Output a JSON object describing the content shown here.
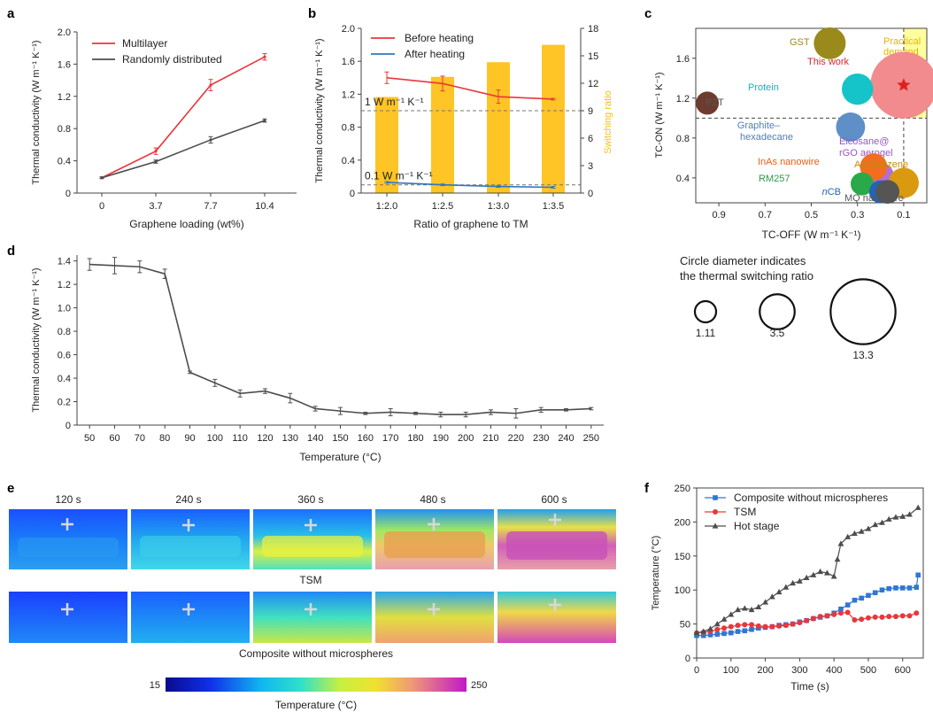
{
  "panel_labels": {
    "a": "a",
    "b": "b",
    "c": "c",
    "d": "d",
    "e": "e",
    "f": "f"
  },
  "chart_data": [
    {
      "id": "a",
      "type": "line",
      "xlabel": "Graphene loading (wt%)",
      "ylabel": "Thermal conductivity (W m⁻¹ K⁻¹)",
      "categories": [
        "0",
        "3.7",
        "7.7",
        "10.4"
      ],
      "ylim": [
        0,
        2.0
      ],
      "yticks": [
        "0",
        "0.4",
        "0.8",
        "1.2",
        "1.6",
        "2.0"
      ],
      "yticks_values": [
        0,
        0.4,
        0.8,
        1.2,
        1.6,
        2.0
      ],
      "legend_position": "top-left",
      "series": [
        {
          "name": "Multilayer",
          "color": "#e8373c",
          "values": [
            0.19,
            0.52,
            1.34,
            1.69
          ],
          "errors": [
            0.01,
            0.04,
            0.07,
            0.04
          ]
        },
        {
          "name": "Randomly distributed",
          "color": "#4d4d4d",
          "values": [
            0.19,
            0.39,
            0.66,
            0.9
          ],
          "errors": [
            0.01,
            0.02,
            0.04,
            0.02
          ]
        }
      ]
    },
    {
      "id": "b",
      "type": "bar",
      "xlabel": "Ratio of graphene to TM",
      "ylabel": "Thermal conductivity (W m⁻¹ K⁻¹)",
      "y2label": "Switching ratio",
      "categories": [
        "1:2.0",
        "1:2.5",
        "1:3.0",
        "1:3.5"
      ],
      "ylim": [
        0,
        2.0
      ],
      "yticks": [
        "0",
        "0.4",
        "0.8",
        "1.2",
        "1.6",
        "2.0"
      ],
      "yticks_values": [
        0,
        0.4,
        0.8,
        1.2,
        1.6,
        2.0
      ],
      "y2lim": [
        0,
        18
      ],
      "y2ticks": [
        "0",
        "3",
        "6",
        "9",
        "12",
        "15",
        "18"
      ],
      "y2ticks_values": [
        0,
        3,
        6,
        9,
        12,
        15,
        18
      ],
      "bar_color": "#ffc425",
      "bars_switching_ratio": [
        10.5,
        12.7,
        14.3,
        16.2
      ],
      "reference_lines": [
        {
          "value": 1.0,
          "label": "1 W m⁻¹ K⁻¹"
        },
        {
          "value": 0.1,
          "label": "0.1 W m⁻¹ K⁻¹"
        }
      ],
      "legend_position": "top",
      "series": [
        {
          "name": "Before heating",
          "color": "#e8373c",
          "values": [
            1.4,
            1.33,
            1.17,
            1.14
          ],
          "errors": [
            0.07,
            0.09,
            0.08,
            0.01
          ]
        },
        {
          "name": "After heating",
          "color": "#2f77bf",
          "values": [
            0.13,
            0.1,
            0.08,
            0.07
          ],
          "errors": [
            0.01,
            0.01,
            0.01,
            0.01
          ]
        }
      ]
    },
    {
      "id": "c",
      "type": "scatter",
      "xlabel": "TC-OFF (W m⁻¹ K⁻¹)",
      "ylabel": "TC-ON (W m⁻¹ K⁻¹)",
      "x_reversed": true,
      "xticks": [
        "0.9",
        "0.7",
        "0.5",
        "0.3",
        "0.1"
      ],
      "xticks_values": [
        0.9,
        0.7,
        0.5,
        0.3,
        0.1
      ],
      "xlim": [
        1.0,
        0.0
      ],
      "ylim": [
        0.15,
        1.9
      ],
      "yticks": [
        "0.4",
        "0.8",
        "1.2",
        "1.6"
      ],
      "yticks_values": [
        0.4,
        0.8,
        1.2,
        1.6
      ],
      "practical_demand_label": "Practical demand",
      "points": [
        {
          "name": "This work",
          "x": 0.1,
          "y": 1.33,
          "ratio": 13.3,
          "color": "#f28b8e",
          "label_color": "#d42a2a",
          "star": true
        },
        {
          "name": "GST",
          "x": 0.42,
          "y": 1.75,
          "ratio": 2.5,
          "color": "#9a8a1c",
          "label_color": "#9a8a1c"
        },
        {
          "name": "Protein",
          "x": 0.3,
          "y": 1.29,
          "ratio": 2.4,
          "color": "#14c4c8",
          "label_color": "#14b4b8"
        },
        {
          "name": "PZT",
          "x": 0.95,
          "y": 1.15,
          "ratio": 1.11,
          "color": "#6e3c2f",
          "label_color": "#555555"
        },
        {
          "name": "Graphite–hexadecane",
          "x": 0.33,
          "y": 0.91,
          "ratio": 2.0,
          "color": "#5f8fc7",
          "label_color": "#4f7fb7"
        },
        {
          "name": "Eicosane@rGO aerogel",
          "x": 0.2,
          "y": 0.42,
          "ratio": 1.6,
          "color": "#b06fd8",
          "label_color": "#9a55c8"
        },
        {
          "name": "InAs nanowire",
          "x": 0.23,
          "y": 0.51,
          "ratio": 1.7,
          "color": "#f26d1f",
          "label_color": "#e8601a"
        },
        {
          "name": "Azobenzene",
          "x": 0.1,
          "y": 0.35,
          "ratio": 2.2,
          "color": "#d99a10",
          "label_color": "#c38a10"
        },
        {
          "name": "RM257",
          "x": 0.28,
          "y": 0.34,
          "ratio": 1.1,
          "color": "#2aa94a",
          "label_color": "#2a9a4a"
        },
        {
          "name": "nCB",
          "x": 0.2,
          "y": 0.26,
          "ratio": 1.1,
          "color": "#2563b8",
          "label_color": "#2563b8"
        },
        {
          "name": "MQ nanofibre",
          "x": 0.17,
          "y": 0.26,
          "ratio": 1.2,
          "color": "#555555",
          "label_color": "#555555"
        }
      ],
      "size_legend": {
        "caption_line1": "Circle diameter indicates",
        "caption_line2": "the thermal switching ratio",
        "examples": [
          {
            "label": "1.11",
            "value": 1.11
          },
          {
            "label": "3.5",
            "value": 3.5
          },
          {
            "label": "13.3",
            "value": 13.3
          }
        ]
      }
    },
    {
      "id": "d",
      "type": "line",
      "xlabel": "Temperature (°C)",
      "ylabel": "Thermal conductivity (W m⁻¹ K⁻¹)",
      "x": [
        50,
        60,
        70,
        80,
        90,
        100,
        110,
        120,
        130,
        140,
        150,
        160,
        170,
        180,
        190,
        200,
        210,
        220,
        230,
        240,
        250
      ],
      "xlim": [
        45,
        255
      ],
      "ylim": [
        0,
        1.45
      ],
      "yticks": [
        "0",
        "0.2",
        "0.4",
        "0.6",
        "0.8",
        "1.0",
        "1.2",
        "1.4"
      ],
      "yticks_values": [
        0,
        0.2,
        0.4,
        0.6,
        0.8,
        1.0,
        1.2,
        1.4
      ],
      "series": [
        {
          "name": "",
          "color": "#4d4d4d",
          "values": [
            1.37,
            1.36,
            1.35,
            1.29,
            0.45,
            0.36,
            0.27,
            0.29,
            0.23,
            0.14,
            0.12,
            0.1,
            0.11,
            0.1,
            0.09,
            0.09,
            0.11,
            0.1,
            0.13,
            0.13,
            0.14
          ],
          "errors": [
            0.05,
            0.07,
            0.05,
            0.04,
            0.01,
            0.03,
            0.03,
            0.02,
            0.04,
            0.02,
            0.03,
            0.01,
            0.03,
            0.01,
            0.02,
            0.02,
            0.02,
            0.04,
            0.02,
            0.01,
            0.01
          ]
        }
      ]
    },
    {
      "id": "f",
      "type": "line",
      "xlabel": "Time (s)",
      "ylabel": "Temperature (°C)",
      "xlim": [
        0,
        660
      ],
      "xticks": [
        "0",
        "100",
        "200",
        "300",
        "400",
        "500",
        "600"
      ],
      "xticks_values": [
        0,
        100,
        200,
        300,
        400,
        500,
        600
      ],
      "ylim": [
        0,
        250
      ],
      "yticks": [
        "0",
        "50",
        "100",
        "150",
        "200",
        "250"
      ],
      "yticks_values": [
        0,
        50,
        100,
        150,
        200,
        250
      ],
      "legend_position": "top-left",
      "series": [
        {
          "name": "Composite without microspheres",
          "color": "#2f77d4",
          "marker": "square",
          "x": [
            0,
            20,
            40,
            60,
            80,
            100,
            120,
            140,
            160,
            180,
            200,
            220,
            240,
            260,
            280,
            300,
            320,
            340,
            360,
            380,
            400,
            420,
            440,
            460,
            480,
            500,
            520,
            540,
            560,
            580,
            600,
            620,
            640,
            645
          ],
          "y": [
            33,
            33,
            34,
            35,
            36,
            37,
            39,
            40,
            42,
            44,
            45,
            46,
            48,
            49,
            50,
            53,
            55,
            58,
            60,
            62,
            66,
            72,
            78,
            85,
            88,
            92,
            96,
            100,
            102,
            103,
            103,
            103,
            104,
            122
          ]
        },
        {
          "name": "TSM",
          "color": "#e8373c",
          "marker": "circle",
          "x": [
            0,
            20,
            40,
            60,
            80,
            100,
            120,
            140,
            160,
            180,
            200,
            220,
            240,
            260,
            280,
            300,
            320,
            340,
            360,
            380,
            400,
            420,
            440,
            460,
            480,
            500,
            520,
            540,
            560,
            580,
            600,
            620,
            640
          ],
          "y": [
            37,
            38,
            39,
            42,
            44,
            46,
            48,
            49,
            49,
            47,
            46,
            46,
            47,
            48,
            50,
            52,
            55,
            58,
            61,
            62,
            64,
            66,
            67,
            56,
            57,
            59,
            60,
            60,
            61,
            61,
            62,
            62,
            66
          ]
        },
        {
          "name": "Hot stage",
          "color": "#4d4d4d",
          "marker": "triangle",
          "x": [
            0,
            20,
            40,
            60,
            80,
            100,
            120,
            140,
            160,
            180,
            200,
            220,
            240,
            260,
            280,
            300,
            320,
            340,
            360,
            380,
            400,
            410,
            420,
            440,
            460,
            480,
            500,
            520,
            540,
            560,
            580,
            600,
            620,
            645
          ],
          "y": [
            37,
            39,
            43,
            50,
            57,
            64,
            71,
            73,
            71,
            75,
            82,
            90,
            97,
            104,
            110,
            113,
            118,
            122,
            127,
            125,
            120,
            145,
            168,
            178,
            183,
            186,
            190,
            196,
            199,
            204,
            207,
            208,
            211,
            221
          ]
        }
      ]
    }
  ],
  "panel_e": {
    "times": [
      "120 s",
      "240 s",
      "360 s",
      "480 s",
      "600 s"
    ],
    "row1_label": "TSM",
    "row2_label": "Composite without microspheres",
    "colorbar_min": "15",
    "colorbar_max": "250",
    "colorbar_label": "Temperature (°C)"
  }
}
